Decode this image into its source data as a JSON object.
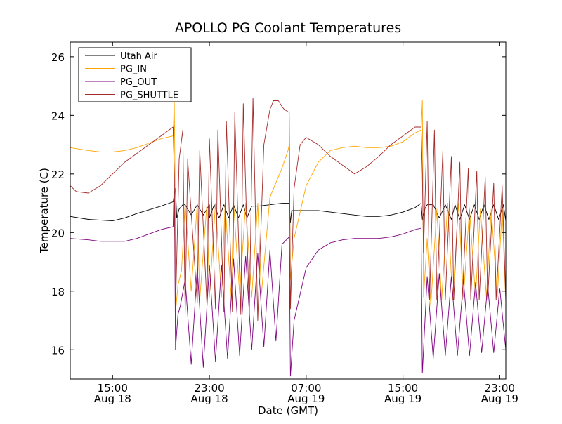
{
  "chart_data": {
    "type": "line",
    "title": "APOLLO PG Coolant Temperatures",
    "xlabel": "Date (GMT)",
    "ylabel": "Temperature (C)",
    "x_unit": "hours since Aug 18 00:00 GMT",
    "xlim": [
      11.5,
      47.5
    ],
    "ylim": [
      15,
      26.5
    ],
    "grid": false,
    "legend_position": "top-left",
    "yticks": [
      {
        "value": 16,
        "label": "16"
      },
      {
        "value": 18,
        "label": "18"
      },
      {
        "value": 20,
        "label": "20"
      },
      {
        "value": 22,
        "label": "22"
      },
      {
        "value": 24,
        "label": "24"
      },
      {
        "value": 26,
        "label": "26"
      }
    ],
    "xticks": [
      {
        "value": 15,
        "time": "15:00",
        "date": "Aug 18"
      },
      {
        "value": 23,
        "time": "23:00",
        "date": "Aug 18"
      },
      {
        "value": 31,
        "time": "07:00",
        "date": "Aug 19"
      },
      {
        "value": 39,
        "time": "15:00",
        "date": "Aug 19"
      },
      {
        "value": 47,
        "time": "23:00",
        "date": "Aug 19"
      }
    ],
    "series": [
      {
        "name": "Utah Air",
        "color": "#000000",
        "x": [
          11.5,
          13,
          15,
          16,
          17,
          19,
          20,
          20.2,
          20.3,
          20.5,
          20.8,
          21,
          21.5,
          22,
          22.5,
          23,
          23,
          23.4,
          23.8,
          24.2,
          24.6,
          25,
          25.4,
          25.8,
          26.1,
          26.5,
          27,
          28,
          29,
          29.6,
          29.7,
          29.8,
          30,
          31,
          32,
          33,
          34,
          35,
          36,
          37,
          38,
          39,
          40,
          40.5,
          40.6,
          40.8,
          41,
          41.5,
          42,
          42.5,
          43,
          43.3,
          43.7,
          44.1,
          44.5,
          44.9,
          45.3,
          45.7,
          46.1,
          46.5,
          46.9,
          47.3,
          47.5
        ],
        "y": [
          20.55,
          20.45,
          20.4,
          20.5,
          20.65,
          20.9,
          21.05,
          21.5,
          20.5,
          20.8,
          20.95,
          20.95,
          20.6,
          20.95,
          20.6,
          20.95,
          20.5,
          20.95,
          20.5,
          20.95,
          20.5,
          20.95,
          20.5,
          20.95,
          20.5,
          20.9,
          20.9,
          20.95,
          21,
          21,
          20.35,
          20.75,
          20.75,
          20.75,
          20.75,
          20.7,
          20.65,
          20.6,
          20.55,
          20.55,
          20.6,
          20.7,
          20.85,
          21,
          20.45,
          20.8,
          20.95,
          20.95,
          20.5,
          20.95,
          20.45,
          20.95,
          20.45,
          20.95,
          20.45,
          20.95,
          20.45,
          20.95,
          20.45,
          20.95,
          20.45,
          20.95,
          20.4
        ]
      },
      {
        "name": "PG_IN",
        "color": "#ffa500",
        "x": [
          11.5,
          13,
          14,
          15,
          16,
          17,
          18,
          19,
          20,
          20.1,
          20.25,
          20.4,
          20.7,
          21,
          21.5,
          22,
          22.2,
          22.8,
          23,
          23.5,
          24,
          24.3,
          24.8,
          25,
          25.5,
          26,
          26.5,
          27,
          27.3,
          28,
          29,
          29.5,
          29.6,
          29.7,
          30,
          31,
          32,
          33,
          34,
          35,
          36,
          37,
          38,
          39,
          40,
          40.5,
          40.6,
          40.7,
          41,
          41.3,
          41.8,
          42.2,
          42.7,
          43.1,
          43.6,
          44,
          44.5,
          45,
          45.4,
          45.9,
          46.3,
          46.8,
          47.2,
          47.5
        ],
        "y": [
          22.9,
          22.8,
          22.75,
          22.75,
          22.8,
          22.9,
          23.05,
          23.2,
          23.3,
          24.5,
          17.5,
          18.2,
          18.7,
          21,
          18,
          21,
          17.7,
          21,
          17.8,
          21,
          17.8,
          21,
          17.8,
          21,
          17.9,
          21,
          17.8,
          21,
          17.9,
          21.2,
          22.2,
          22.8,
          23,
          18.4,
          19.8,
          21.6,
          22.4,
          22.8,
          22.9,
          22.95,
          22.9,
          22.9,
          22.95,
          23.1,
          23.4,
          23.5,
          24.5,
          17.8,
          19.8,
          17.5,
          20.8,
          17.7,
          21,
          17.7,
          21,
          17.8,
          20.8,
          17.8,
          20.8,
          17.8,
          20.8,
          17.8,
          20.8,
          17.6
        ]
      },
      {
        "name": "PG_OUT",
        "color": "#800080",
        "x": [
          11.5,
          13,
          14,
          15,
          16,
          17,
          18,
          19,
          20,
          20.1,
          20.2,
          20.4,
          20.6,
          21,
          21.5,
          22,
          22.5,
          23,
          23.5,
          24,
          24.5,
          25,
          25.5,
          26,
          26.5,
          27,
          27.5,
          28,
          28.5,
          29,
          29.6,
          29.7,
          30,
          31,
          32,
          33,
          34,
          35,
          36,
          37,
          38,
          39,
          40,
          40.5,
          40.6,
          41,
          41.5,
          42,
          42.5,
          43,
          43.5,
          44,
          44.5,
          45,
          45.5,
          46,
          46.5,
          47,
          47.5
        ],
        "y": [
          19.8,
          19.75,
          19.7,
          19.7,
          19.7,
          19.8,
          19.95,
          20.1,
          20.2,
          22,
          16,
          17.2,
          17.5,
          18.4,
          15.5,
          18.8,
          15.4,
          18.9,
          15.6,
          18.9,
          15.7,
          19.1,
          15.8,
          19.2,
          16,
          19.3,
          16.1,
          19.4,
          16.3,
          19.6,
          19.85,
          15.1,
          17,
          18.8,
          19.4,
          19.65,
          19.75,
          19.8,
          19.8,
          19.8,
          19.85,
          19.95,
          20.1,
          20.15,
          15.2,
          18.5,
          15.7,
          18.6,
          15.8,
          18.5,
          15.8,
          18.4,
          15.8,
          18.3,
          15.9,
          18.2,
          15.9,
          18.1,
          16
        ]
      },
      {
        "name": "PG_SHUTTLE",
        "color": "#a52a2a",
        "x": [
          11.5,
          12,
          13,
          14,
          15,
          16,
          17,
          18,
          19,
          20,
          20.1,
          20.2,
          20.5,
          20.8,
          21,
          21.2,
          22,
          22.2,
          22.8,
          23,
          23.5,
          23.7,
          24.2,
          24.4,
          24.9,
          25.1,
          25.6,
          25.8,
          26.3,
          26.6,
          27,
          27.5,
          28,
          28.3,
          28.7,
          29,
          29.2,
          29.6,
          29.7,
          30,
          30.5,
          31,
          32,
          33,
          34,
          35,
          36,
          37,
          38,
          39,
          40,
          40.5,
          40.6,
          40.7,
          41,
          41.2,
          41.6,
          41.8,
          42.3,
          42.5,
          43,
          43.2,
          43.7,
          43.9,
          44.4,
          44.6,
          45.1,
          45.3,
          45.8,
          46,
          46.5,
          46.7,
          47.2,
          47.5
        ],
        "y": [
          21.6,
          21.4,
          21.35,
          21.6,
          22,
          22.4,
          22.7,
          23,
          23.3,
          23.6,
          22,
          17.3,
          22.5,
          23.5,
          17.2,
          22.5,
          17.6,
          22.8,
          17.5,
          23.2,
          17.4,
          23.5,
          17.3,
          23.8,
          17.3,
          24.1,
          17.2,
          24.4,
          17.2,
          24.6,
          17,
          23,
          24.2,
          24.5,
          24.5,
          24.3,
          24.2,
          24.1,
          17.4,
          21.5,
          23,
          23.25,
          23,
          22.6,
          22.3,
          22,
          22.25,
          22.6,
          23,
          23.3,
          23.6,
          23.6,
          22,
          19.3,
          23.8,
          17.7,
          23.5,
          17.7,
          22.8,
          17.7,
          22.6,
          17.7,
          22.4,
          17.7,
          22.2,
          17.7,
          22.1,
          17.7,
          21.9,
          17.7,
          21.7,
          17.7,
          21.6,
          17.7
        ]
      }
    ]
  }
}
